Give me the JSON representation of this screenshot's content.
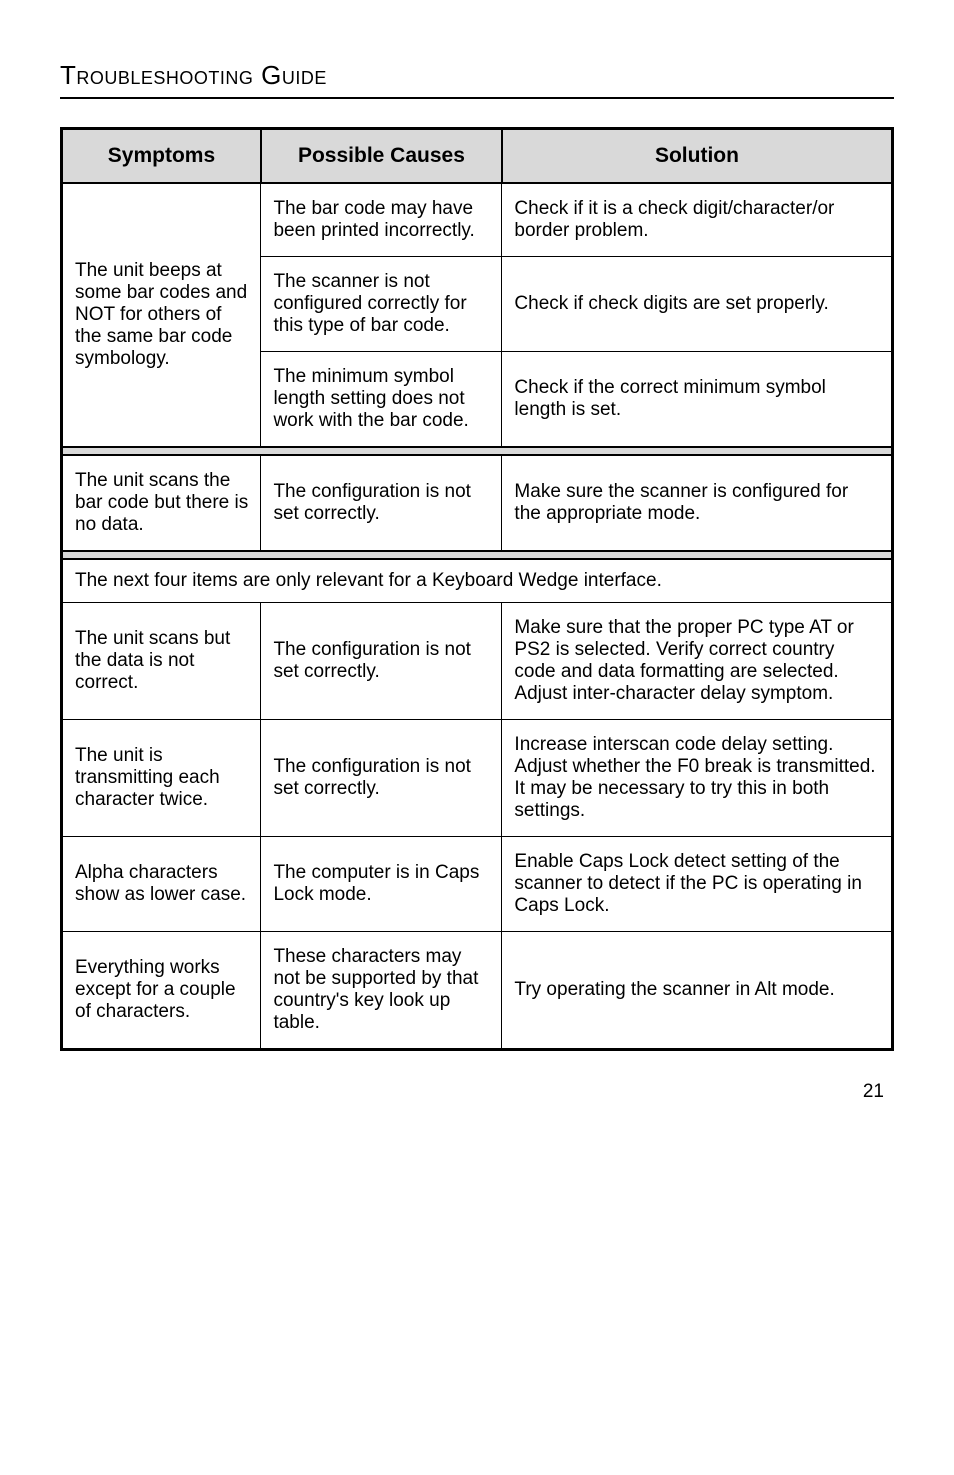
{
  "title": "Troubleshooting Guide",
  "columns": {
    "symptoms": "Symptoms",
    "causes": "Possible Causes",
    "solution": "Solution"
  },
  "group1": {
    "symptom": "The unit beeps at some bar codes and NOT for others of the same bar code symbology.",
    "rows": [
      {
        "cause": "The bar code may have been printed incorrectly.",
        "solution": "Check if it is a check digit/character/or border problem."
      },
      {
        "cause": "The scanner is not configured correctly for this type of bar code.",
        "solution": "Check if check digits are set properly."
      },
      {
        "cause": "The minimum symbol length setting does not work with the bar code.",
        "solution": "Check if the correct minimum symbol length is set."
      }
    ]
  },
  "group2": {
    "symptom": "The unit scans the bar code but there is no data.",
    "cause": "The configuration is not set correctly.",
    "solution": "Make sure the scanner is configured for the appropriate mode."
  },
  "section_note": "The next four items are only relevant for a Keyboard Wedge interface.",
  "group3": [
    {
      "symptom": "The unit scans but the data is not correct.",
      "cause": "The configuration is not set correctly.",
      "solution": "Make sure that the proper PC type AT or PS2 is selected.  Verify correct country code and data formatting are selected. Adjust inter-character delay symptom."
    },
    {
      "symptom": "The unit is transmitting each character twice.",
      "cause": "The configuration is not set correctly.",
      "solution": "Increase interscan code delay setting. Adjust whether the F0 break is transmitted.  It may be necessary to try this in both settings."
    },
    {
      "symptom": "Alpha characters show as lower case.",
      "cause": "The computer is in Caps Lock mode.",
      "solution": "Enable Caps Lock detect setting of the scanner to detect if the PC is operating in Caps Lock."
    },
    {
      "symptom": "Everything works except for a couple of characters.",
      "cause": "These characters may not be supported by that country's key look up table.",
      "solution": "Try operating the scanner in Alt mode."
    }
  ],
  "page_number": "21",
  "colors": {
    "header_bg": "#d9d9d9",
    "border": "#000000",
    "text": "#000000",
    "bg": "#ffffff"
  }
}
